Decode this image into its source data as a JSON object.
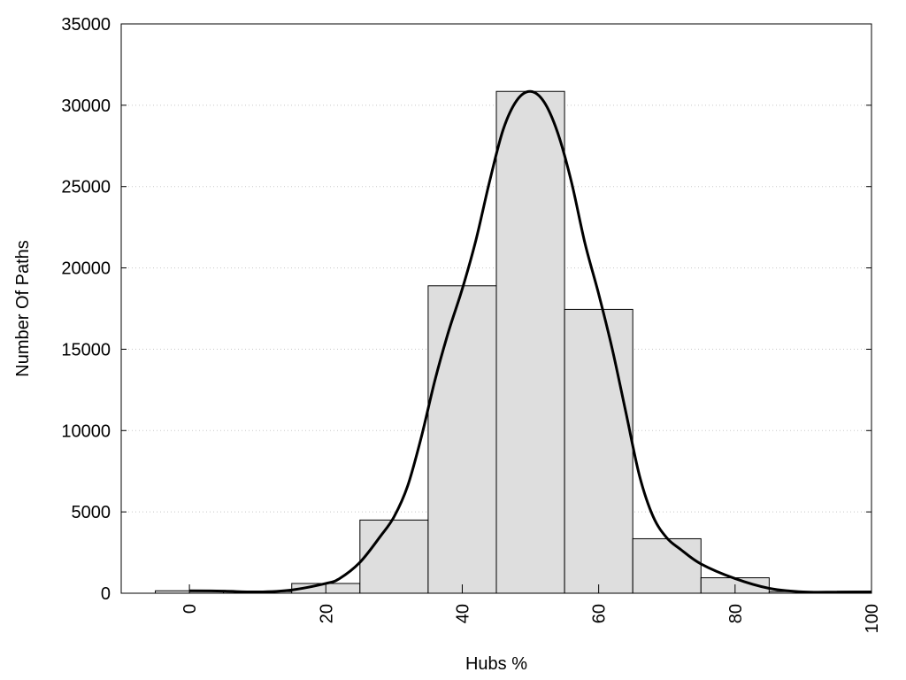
{
  "chart_data": {
    "type": "bar",
    "title": "",
    "xlabel": "Hubs %",
    "ylabel": "Number Of Paths",
    "xlim": [
      -10,
      100
    ],
    "ylim": [
      0,
      35000
    ],
    "xticks": [
      "0",
      "20",
      "40",
      "60",
      "80",
      "100"
    ],
    "xtick_values": [
      0,
      20,
      40,
      60,
      80,
      100
    ],
    "yticks": [
      "0",
      "5000",
      "10000",
      "15000",
      "20000",
      "25000",
      "30000",
      "35000"
    ],
    "ytick_values": [
      0,
      5000,
      10000,
      15000,
      20000,
      25000,
      30000,
      35000
    ],
    "grid": "horizontal-dotted",
    "bins": [
      {
        "center": 0,
        "width": 10,
        "value": 150
      },
      {
        "center": 10,
        "width": 10,
        "value": 100
      },
      {
        "center": 20,
        "width": 10,
        "value": 600
      },
      {
        "center": 30,
        "width": 10,
        "value": 4500
      },
      {
        "center": 40,
        "width": 10,
        "value": 18900
      },
      {
        "center": 50,
        "width": 10,
        "value": 30850
      },
      {
        "center": 60,
        "width": 10,
        "value": 17450
      },
      {
        "center": 70,
        "width": 10,
        "value": 3350
      },
      {
        "center": 80,
        "width": 10,
        "value": 950
      },
      {
        "center": 90,
        "width": 10,
        "value": 100
      },
      {
        "center": 100,
        "width": 10,
        "value": 120
      }
    ],
    "curve": {
      "x": [
        0,
        5,
        10,
        15,
        20,
        22,
        25,
        28,
        30,
        32,
        34,
        36,
        38,
        40,
        42,
        44,
        46,
        48,
        50,
        52,
        54,
        56,
        58,
        60,
        62,
        64,
        66,
        68,
        70,
        72,
        75,
        80,
        85,
        90,
        95,
        100
      ],
      "y": [
        150,
        130,
        80,
        200,
        600,
        900,
        1900,
        3500,
        4700,
        6600,
        9600,
        13100,
        16100,
        18700,
        21700,
        25300,
        28500,
        30300,
        30850,
        30200,
        28300,
        25300,
        21500,
        18400,
        15000,
        11100,
        7200,
        4700,
        3400,
        2700,
        1800,
        900,
        300,
        80,
        70,
        80
      ]
    },
    "colors": {
      "bar_fill": "#dedede",
      "bar_stroke": "#000000",
      "curve": "#000000",
      "grid": "#c8c8c8"
    }
  }
}
